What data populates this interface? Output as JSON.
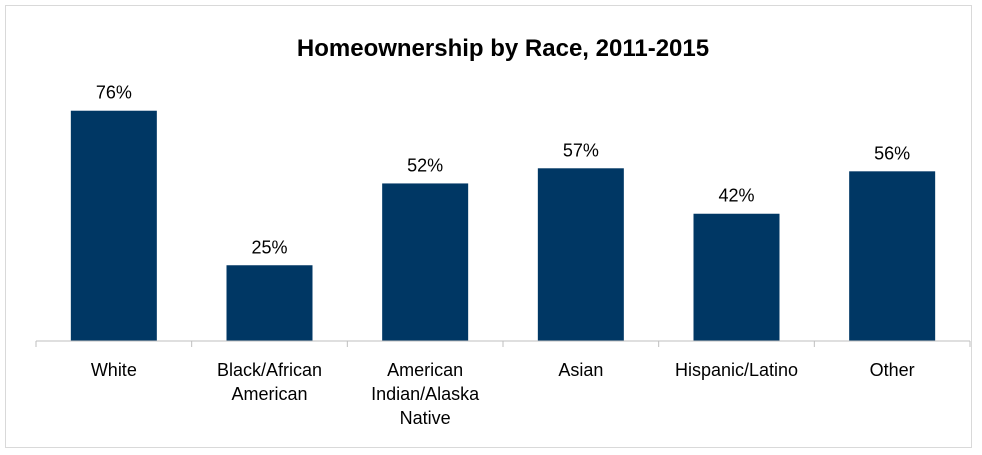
{
  "chart_data": {
    "type": "bar",
    "title": "Homeownership by Race, 2011-2015",
    "xlabel": "",
    "ylabel": "",
    "categories": [
      [
        "White"
      ],
      [
        "Black/African",
        "American"
      ],
      [
        "American",
        "Indian/Alaska",
        "Native"
      ],
      [
        "Asian"
      ],
      [
        "Hispanic/Latino"
      ],
      [
        "Other"
      ]
    ],
    "values": [
      76,
      25,
      52,
      57,
      42,
      56
    ],
    "value_labels": [
      "76%",
      "25%",
      "52%",
      "57%",
      "42%",
      "56%"
    ],
    "ylim": [
      0,
      100
    ],
    "grid": false,
    "legend": "none",
    "bar_color": "#003764"
  }
}
